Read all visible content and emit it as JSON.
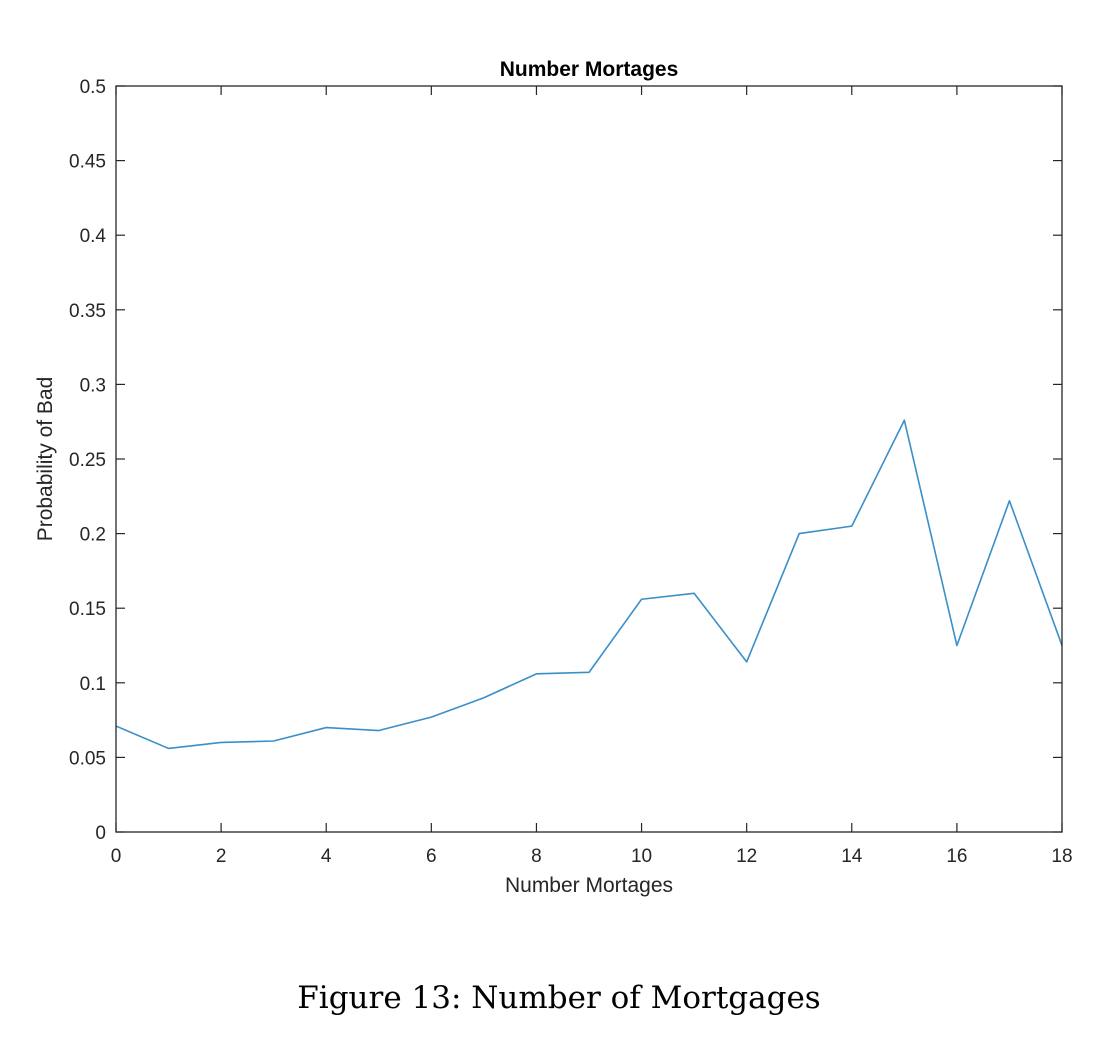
{
  "chart_data": {
    "type": "line",
    "title": "Number Mortages",
    "xlabel": "Number Mortages",
    "ylabel": "Probability of Bad",
    "xlim": [
      0,
      18
    ],
    "ylim": [
      0,
      0.5
    ],
    "x_ticks": [
      "0",
      "2",
      "4",
      "6",
      "8",
      "10",
      "12",
      "14",
      "16",
      "18"
    ],
    "y_ticks": [
      "0",
      "0.05",
      "0.1",
      "0.15",
      "0.2",
      "0.25",
      "0.3",
      "0.35",
      "0.4",
      "0.45",
      "0.5"
    ],
    "grid": false,
    "line_color": "#3a8fc8",
    "series": [
      {
        "x": [
          0,
          1,
          2,
          3,
          4,
          5,
          6,
          7,
          8,
          9,
          10,
          11,
          12,
          13,
          14,
          15,
          16,
          17,
          18
        ],
        "values": [
          0.071,
          0.056,
          0.06,
          0.061,
          0.07,
          0.068,
          0.077,
          0.09,
          0.106,
          0.107,
          0.156,
          0.16,
          0.114,
          0.2,
          0.205,
          0.276,
          0.125,
          0.222,
          0.125
        ]
      }
    ]
  },
  "caption": "Figure 13: Number of Mortgages"
}
